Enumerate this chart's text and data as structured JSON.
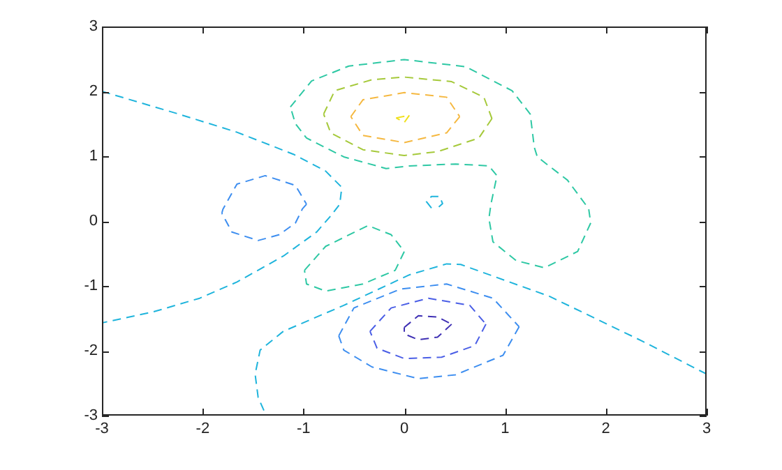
{
  "chart_data": {
    "type": "line",
    "line_style": "dashed",
    "marker": "none",
    "grid": false,
    "legend": false,
    "xlim": [
      -3,
      3
    ],
    "ylim": [
      -3,
      3
    ],
    "xticks": [
      -3,
      -2,
      -1,
      0,
      1,
      2,
      3
    ],
    "yticks": [
      -3,
      -2,
      -1,
      0,
      1,
      2,
      3
    ],
    "series": [
      {
        "color": "#1eb4dc",
        "x": [
          -3,
          -2.26,
          -1.66,
          -1.1,
          -0.78,
          -0.62,
          -0.64,
          -0.73,
          -0.87,
          -1.2,
          -1.66,
          -2.03,
          -2.49,
          -3
        ],
        "values": [
          2,
          1.66,
          1.37,
          1.03,
          0.77,
          0.52,
          0.26,
          0.08,
          -0.17,
          -0.54,
          -0.94,
          -1.19,
          -1.4,
          -1.57
        ]
      },
      {
        "color": "#1eb4dc",
        "x": [
          3,
          2.36,
          1.44,
          0.56,
          0.42,
          0.05,
          -0.6,
          -1.2,
          -1.43,
          -1.48,
          -1.45,
          -1.37
        ],
        "values": [
          -2.36,
          -1.85,
          -1.16,
          -0.67,
          -0.66,
          -0.83,
          -1.3,
          -1.7,
          -1.99,
          -2.36,
          -2.72,
          -3
        ]
      },
      {
        "color": "#3d8ef0",
        "x": [
          -1.81,
          -1.8,
          -1.66,
          -1.38,
          -1.08,
          -0.97
        ],
        "values": [
          0.12,
          0.18,
          0.57,
          0.7,
          0.55,
          0.26
        ]
      },
      {
        "color": "#3d8ef0",
        "x": [
          -0.97,
          -1.01,
          -1.08,
          -1.24,
          -1.45,
          -1.71,
          -1.81
        ],
        "values": [
          0.26,
          0.19,
          -0.03,
          -0.21,
          -0.3,
          -0.17,
          0.12
        ]
      },
      {
        "color": "#3d8ef0",
        "x": [
          -0.65,
          -0.5,
          -0.04,
          0.42,
          0.88,
          1.14
        ],
        "values": [
          -1.77,
          -1.34,
          -1.05,
          -0.97,
          -1.19,
          -1.63
        ]
      },
      {
        "color": "#3d8ef0",
        "x": [
          1.14,
          0.98,
          0.51,
          0.14,
          -0.32,
          -0.6,
          -0.65
        ],
        "values": [
          -1.63,
          -2.07,
          -2.37,
          -2.43,
          -2.25,
          -1.99,
          -1.77
        ]
      },
      {
        "color": "#4a5ee6",
        "x": [
          -0.34,
          -0.13,
          0.24,
          0.65,
          0.81
        ],
        "values": [
          -1.7,
          -1.34,
          -1.19,
          -1.3,
          -1.59
        ]
      },
      {
        "color": "#4a5ee6",
        "x": [
          0.81,
          0.7,
          0.37,
          0,
          -0.27,
          -0.34
        ],
        "values": [
          -1.59,
          -1.92,
          -2.1,
          -2.12,
          -1.96,
          -1.7
        ]
      },
      {
        "color": "#3f30b4",
        "x": [
          0,
          0.14,
          0.33,
          0.47
        ],
        "values": [
          -1.64,
          -1.46,
          -1.48,
          -1.59
        ]
      },
      {
        "color": "#3f30b4",
        "x": [
          0.47,
          0.33,
          0.14,
          0,
          0
        ],
        "values": [
          -1.59,
          -1.79,
          -1.83,
          -1.74,
          -1.64
        ]
      },
      {
        "color": "#2ec8a4",
        "x": [
          -1.13,
          -0.92,
          -0.55,
          0,
          0.61,
          1.07,
          1.25,
          1.29,
          1.32,
          1.62,
          1.83,
          1.85
        ],
        "values": [
          1.76,
          2.16,
          2.39,
          2.49,
          2.38,
          2.01,
          1.65,
          1.14,
          0.99,
          0.63,
          0.19,
          -0.03
        ]
      },
      {
        "color": "#2ec8a4",
        "x": [
          1.85,
          1.72,
          1.39,
          1.11,
          0.88,
          0.84,
          0.86,
          0.92,
          0.84,
          0.51,
          0.05,
          -0.18,
          -0.6,
          -0.97,
          -1.08,
          -1.13
        ],
        "values": [
          -0.03,
          -0.47,
          -0.72,
          -0.61,
          -0.32,
          0.04,
          0.26,
          0.7,
          0.85,
          0.88,
          0.85,
          0.81,
          0.99,
          1.28,
          1.5,
          1.76
        ]
      },
      {
        "color": "#2ec8a4",
        "x": [
          -0.99,
          -0.78,
          -0.36,
          -0.13,
          0
        ],
        "values": [
          -0.76,
          -0.39,
          -0.07,
          -0.21,
          -0.47
        ]
      },
      {
        "color": "#2ec8a4",
        "x": [
          0,
          -0.09,
          -0.41,
          -0.78,
          -0.97,
          -0.99
        ],
        "values": [
          -0.47,
          -0.76,
          -0.97,
          -1.08,
          -0.97,
          -0.76
        ]
      },
      {
        "color": "#1eb4dc",
        "x": [
          0.27,
          0.22,
          0.27,
          0.35,
          0.38,
          0.33
        ],
        "values": [
          0.2,
          0.3,
          0.38,
          0.38,
          0.27,
          0.2
        ]
      },
      {
        "color": "#a5c93a",
        "x": [
          -0.8,
          -0.69,
          -0.32,
          0,
          0.47,
          0.79,
          0.87
        ],
        "values": [
          1.65,
          2.01,
          2.18,
          2.22,
          2.15,
          1.91,
          1.58
        ]
      },
      {
        "color": "#a5c93a",
        "x": [
          0.87,
          0.74,
          0.33,
          0,
          -0.41,
          -0.73,
          -0.8
        ],
        "values": [
          1.58,
          1.28,
          1.07,
          1.01,
          1.1,
          1.36,
          1.65
        ]
      },
      {
        "color": "#f5b840",
        "x": [
          -0.53,
          -0.41,
          0,
          0.42,
          0.55
        ],
        "values": [
          1.61,
          1.87,
          1.98,
          1.91,
          1.61
        ]
      },
      {
        "color": "#f5b840",
        "x": [
          0.55,
          0.42,
          0,
          -0.41,
          -0.53
        ],
        "values": [
          1.61,
          1.36,
          1.21,
          1.32,
          1.61
        ]
      },
      {
        "color": "#f0e01a",
        "x": [
          -0.08,
          0.05
        ],
        "values": [
          1.59,
          1.63
        ]
      },
      {
        "color": "#f0e01a",
        "x": [
          0.05,
          0,
          -0.08
        ],
        "values": [
          1.63,
          1.52,
          1.59
        ]
      }
    ]
  }
}
